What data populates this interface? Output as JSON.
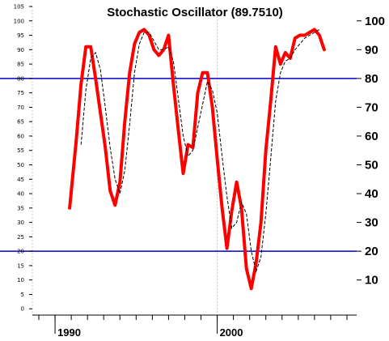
{
  "chart_data": {
    "type": "line",
    "title": "Stochastic Oscillator (89.7510)",
    "xlabel": "",
    "ylabel": "",
    "xlim": [
      1988.6,
      2008.6
    ],
    "ylim": [
      -5,
      105
    ],
    "left_axis_ticks": [
      0,
      5,
      10,
      15,
      20,
      25,
      30,
      35,
      40,
      45,
      50,
      55,
      60,
      65,
      70,
      75,
      80,
      85,
      90,
      95,
      100,
      105
    ],
    "right_axis_ticks": [
      10,
      20,
      30,
      40,
      50,
      60,
      70,
      80,
      90,
      100
    ],
    "x_tick_labels": [
      {
        "value": 1990,
        "label": "1990"
      },
      {
        "value": 2000,
        "label": "2000"
      }
    ],
    "reference_lines": [
      20,
      80
    ],
    "grid_x": [
      1988.6,
      2000
    ],
    "colors": {
      "k_line": "#ff0000",
      "d_line": "#000000",
      "reference": "#0000cc",
      "grid": "#c8c8c8"
    },
    "series": [
      {
        "style": "thick-red",
        "x": [
          1990.9,
          1991.3,
          1991.6,
          1991.9,
          1992.2,
          1992.5,
          1992.8,
          1993.1,
          1993.4,
          1993.7,
          1994.0,
          1994.3,
          1994.6,
          1994.9,
          1995.2,
          1995.5,
          1995.8,
          1996.1,
          1996.4,
          1996.7,
          1997.0,
          1997.3,
          1997.6,
          1997.9,
          1998.2,
          1998.5,
          1998.8,
          1999.1,
          1999.4,
          1999.7,
          2000.0,
          2000.3,
          2000.6,
          2000.9,
          2001.2,
          2001.5,
          2001.8,
          2002.1,
          2002.4,
          2002.7,
          2003.0,
          2003.3,
          2003.6,
          2003.9,
          2004.2,
          2004.5,
          2004.8,
          2005.1,
          2005.4,
          2005.7,
          2006.0,
          2006.3,
          2006.6
        ],
        "values": [
          35,
          58,
          78,
          91,
          91,
          80,
          68,
          56,
          41,
          36,
          44,
          65,
          82,
          92,
          96,
          97,
          95,
          90,
          88,
          90,
          95,
          78,
          62,
          47,
          57,
          56,
          75,
          82,
          82,
          70,
          52,
          35,
          21,
          34,
          44,
          35,
          14,
          7,
          16,
          30,
          55,
          72,
          91,
          85,
          89,
          87,
          94,
          95,
          95,
          96,
          97,
          95,
          90
        ]
      },
      {
        "style": "dashed-black",
        "x": [
          1991.6,
          1991.9,
          1992.2,
          1992.5,
          1992.8,
          1993.1,
          1993.4,
          1993.7,
          1994.0,
          1994.3,
          1994.6,
          1994.9,
          1995.2,
          1995.5,
          1995.8,
          1996.1,
          1996.4,
          1996.7,
          1997.0,
          1997.3,
          1997.6,
          1997.9,
          1998.2,
          1998.5,
          1998.8,
          1999.1,
          1999.4,
          1999.7,
          2000.0,
          2000.3,
          2000.6,
          2000.9,
          2001.2,
          2001.5,
          2001.8,
          2002.1,
          2002.4,
          2002.7,
          2003.0,
          2003.3,
          2003.6,
          2003.9,
          2004.2,
          2004.5,
          2004.8,
          2005.1,
          2005.4,
          2005.7,
          2006.0,
          2006.3
        ],
        "values": [
          57,
          76,
          87,
          89,
          83,
          70,
          56,
          45,
          40,
          48,
          64,
          82,
          92,
          96,
          96,
          93,
          90,
          90,
          91,
          86,
          73,
          60,
          53,
          55,
          63,
          71,
          79,
          76,
          68,
          53,
          39,
          28,
          30,
          37,
          33,
          20,
          13,
          18,
          33,
          52,
          72,
          82,
          86,
          87,
          90,
          92,
          94,
          95,
          96,
          97
        ]
      }
    ]
  }
}
